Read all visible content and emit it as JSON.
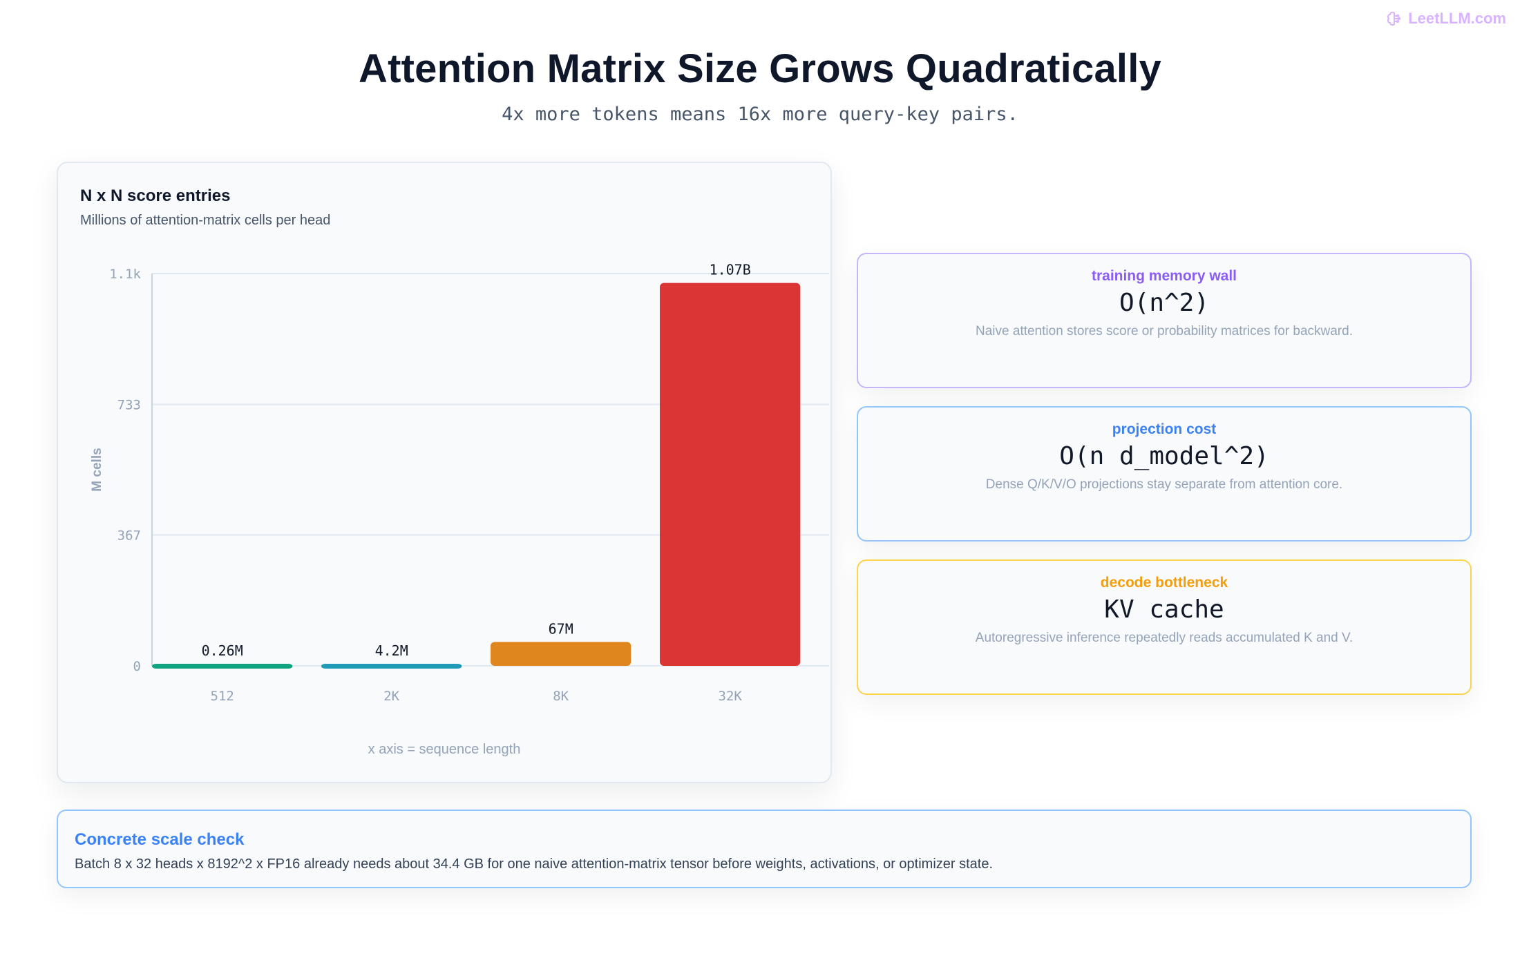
{
  "brand": {
    "name": "LeetLLM.com",
    "icon": "brain-icon",
    "color": "#d8b4fe"
  },
  "title": "Attention Matrix Size Grows Quadratically",
  "subtitle": "4x more tokens means 16x more query-key pairs.",
  "chart_card": {
    "title": "N x N score entries",
    "subtitle": "Millions of attention-matrix cells per head",
    "x_caption": "x axis = sequence length"
  },
  "chart_data": {
    "type": "bar",
    "categories": [
      "512",
      "2K",
      "8K",
      "32K"
    ],
    "values": [
      0.26,
      4.2,
      67,
      1073.7
    ],
    "value_labels": [
      "0.26M",
      "4.2M",
      "67M",
      "1.07B"
    ],
    "colors": [
      "#10a37f",
      "#1f9bb8",
      "#e0861f",
      "#dc3535"
    ],
    "ylabel": "M cells",
    "yticks": [
      0,
      367,
      733,
      1100
    ],
    "ytick_labels": [
      "0",
      "367",
      "733",
      "1.1k"
    ],
    "ylim": [
      0,
      1100
    ],
    "grid": true,
    "legend": false
  },
  "cards": [
    {
      "label": "training memory wall",
      "value": "O(n^2)",
      "desc": "Naive attention stores score or probability matrices for backward.",
      "color": "#8b5cf6",
      "border": "#c4b5fd"
    },
    {
      "label": "projection cost",
      "value": "O(n d_model^2)",
      "desc": "Dense Q/K/V/O projections stay separate from attention core.",
      "color": "#3b82f6",
      "border": "#93c5fd"
    },
    {
      "label": "decode bottleneck",
      "value": "KV cache",
      "desc": "Autoregressive inference repeatedly reads accumulated K and V.",
      "color": "#f59e0b",
      "border": "#fcd34d"
    }
  ],
  "note": {
    "title": "Concrete scale check",
    "text": "Batch 8 x 32 heads x 8192^2 x FP16 already needs about 34.4 GB for one naive attention-matrix tensor before weights, activations, or optimizer state."
  }
}
